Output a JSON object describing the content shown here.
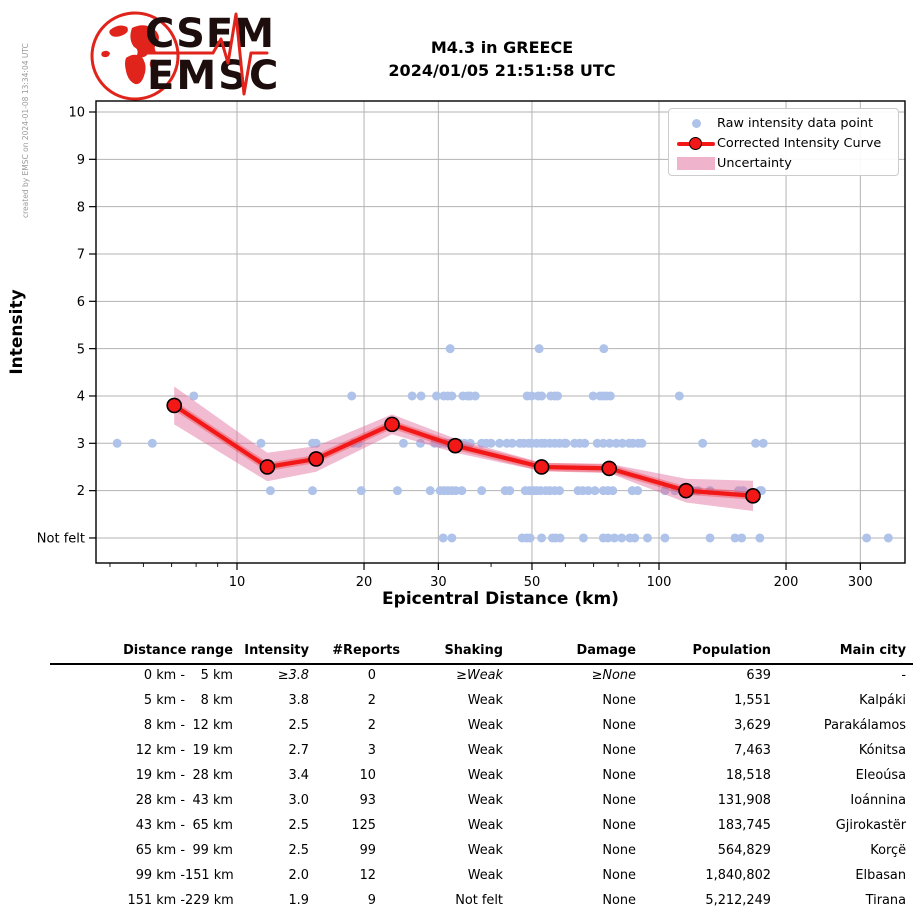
{
  "meta": {
    "created_by": "created by EMSC on 2024-01-08 13:34:04 UTC"
  },
  "logo": {
    "line1": "CSEM",
    "line2": "EMSC"
  },
  "title": {
    "line1": "M4.3 in GREECE",
    "line2": "2024/01/05 21:51:58 UTC"
  },
  "chart_data": {
    "type": "scatter",
    "title": "M4.3 in GREECE 2024/01/05 21:51:58 UTC",
    "xlabel": "Epicentral Distance (km)",
    "ylabel": "Intensity",
    "x_scale": "log",
    "xlim": [
      4.63,
      383
    ],
    "ylim": [
      0.47,
      10.23
    ],
    "x_major_ticks": [
      10,
      20,
      30,
      50,
      100,
      200,
      300
    ],
    "x_minor_ticks": [
      5,
      6,
      7,
      8,
      9,
      40,
      60,
      70,
      80,
      90
    ],
    "y_ticks": [
      {
        "v": 10,
        "label": "10"
      },
      {
        "v": 9,
        "label": "9"
      },
      {
        "v": 8,
        "label": "8"
      },
      {
        "v": 7,
        "label": "7"
      },
      {
        "v": 6,
        "label": "6"
      },
      {
        "v": 5,
        "label": "5"
      },
      {
        "v": 4,
        "label": "4"
      },
      {
        "v": 3,
        "label": "3"
      },
      {
        "v": 2,
        "label": "2"
      },
      {
        "v": 1,
        "label": "Not felt"
      }
    ],
    "grid": true,
    "legend_position": "upper right",
    "legend": [
      {
        "key": "raw",
        "label": "Raw intensity data point"
      },
      {
        "key": "curve",
        "label": "Corrected Intensity Curve"
      },
      {
        "key": "band",
        "label": "Uncertainty"
      }
    ],
    "colors": {
      "raw": "#afc3ea",
      "curve": "#f21818",
      "band": "#e06898",
      "marker_edge": "#000000",
      "grid": "#b3b3b3",
      "axis": "#000000"
    },
    "corrected_curve": [
      [
        7.1,
        3.8,
        0.4
      ],
      [
        11.8,
        2.5,
        0.3
      ],
      [
        15.4,
        2.67,
        0.27
      ],
      [
        23.3,
        3.4,
        0.21
      ],
      [
        32.9,
        2.95,
        0.15
      ],
      [
        52.7,
        2.5,
        0.09
      ],
      [
        76.2,
        2.47,
        0.1
      ],
      [
        115.9,
        2.0,
        0.25
      ],
      [
        167,
        1.89,
        0.32
      ]
    ],
    "raw_points": [
      [
        32,
        5
      ],
      [
        52,
        5
      ],
      [
        74,
        5
      ],
      [
        7.9,
        4
      ],
      [
        18.7,
        4
      ],
      [
        26,
        4
      ],
      [
        27.3,
        4
      ],
      [
        29.7,
        4
      ],
      [
        30.9,
        4
      ],
      [
        31.6,
        4
      ],
      [
        32.3,
        4
      ],
      [
        34.3,
        4
      ],
      [
        35.2,
        4
      ],
      [
        35.7,
        4
      ],
      [
        36.7,
        4
      ],
      [
        48.7,
        4
      ],
      [
        49.9,
        4
      ],
      [
        51.7,
        4
      ],
      [
        52.7,
        4
      ],
      [
        55.4,
        4
      ],
      [
        56.6,
        4
      ],
      [
        57.5,
        4
      ],
      [
        69.8,
        4
      ],
      [
        72.5,
        4
      ],
      [
        73.8,
        4
      ],
      [
        75.1,
        4
      ],
      [
        76.7,
        4
      ],
      [
        111.7,
        4
      ],
      [
        5.2,
        3
      ],
      [
        6.3,
        3
      ],
      [
        11.4,
        3
      ],
      [
        15.1,
        3
      ],
      [
        15.4,
        3
      ],
      [
        18.9,
        3
      ],
      [
        19.4,
        3
      ],
      [
        24.8,
        3
      ],
      [
        27.2,
        3
      ],
      [
        29.4,
        3
      ],
      [
        30.3,
        3
      ],
      [
        31.1,
        3
      ],
      [
        31.9,
        3
      ],
      [
        32.8,
        3
      ],
      [
        33.7,
        3
      ],
      [
        34.6,
        3
      ],
      [
        35.7,
        3
      ],
      [
        38,
        3
      ],
      [
        39,
        3
      ],
      [
        40,
        3
      ],
      [
        41.9,
        3
      ],
      [
        43.6,
        3
      ],
      [
        44.9,
        3
      ],
      [
        46.8,
        3
      ],
      [
        47.8,
        3
      ],
      [
        49.1,
        3
      ],
      [
        49.9,
        3
      ],
      [
        51.3,
        3
      ],
      [
        52.7,
        3
      ],
      [
        53.6,
        3
      ],
      [
        55.1,
        3
      ],
      [
        56.6,
        3
      ],
      [
        58.1,
        3
      ],
      [
        59.7,
        3
      ],
      [
        60.2,
        3
      ],
      [
        63.1,
        3
      ],
      [
        64.9,
        3
      ],
      [
        66.7,
        3
      ],
      [
        71.4,
        3
      ],
      [
        73.8,
        3
      ],
      [
        76.4,
        3
      ],
      [
        79.2,
        3
      ],
      [
        81.9,
        3
      ],
      [
        85,
        3
      ],
      [
        86.7,
        3
      ],
      [
        89.3,
        3
      ],
      [
        91.1,
        3
      ],
      [
        126.9,
        3
      ],
      [
        169.4,
        3
      ],
      [
        176.6,
        3
      ],
      [
        12,
        2
      ],
      [
        15.1,
        2
      ],
      [
        19.7,
        2
      ],
      [
        24,
        2
      ],
      [
        28.7,
        2
      ],
      [
        30.3,
        2
      ],
      [
        30.9,
        2
      ],
      [
        31.6,
        2
      ],
      [
        32.3,
        2
      ],
      [
        33,
        2
      ],
      [
        34.1,
        2
      ],
      [
        38,
        2
      ],
      [
        43.2,
        2
      ],
      [
        44.3,
        2
      ],
      [
        48.2,
        2
      ],
      [
        49.3,
        2
      ],
      [
        50.4,
        2
      ],
      [
        51.3,
        2
      ],
      [
        52.4,
        2
      ],
      [
        53.9,
        2
      ],
      [
        55.1,
        2
      ],
      [
        56.6,
        2
      ],
      [
        58.1,
        2
      ],
      [
        64.3,
        2
      ],
      [
        66,
        2
      ],
      [
        68,
        2
      ],
      [
        70.5,
        2
      ],
      [
        73.8,
        2
      ],
      [
        75.7,
        2
      ],
      [
        77.7,
        2
      ],
      [
        86.4,
        2
      ],
      [
        89,
        2
      ],
      [
        103.3,
        2
      ],
      [
        109.1,
        2
      ],
      [
        120.4,
        2
      ],
      [
        123.7,
        2
      ],
      [
        132.1,
        2
      ],
      [
        154.4,
        2
      ],
      [
        158.3,
        2
      ],
      [
        173.4,
        2
      ],
      [
        174.9,
        2
      ],
      [
        30.8,
        1
      ],
      [
        32.3,
        1
      ],
      [
        47.4,
        1
      ],
      [
        48.6,
        1
      ],
      [
        49.5,
        1
      ],
      [
        52.7,
        1
      ],
      [
        55.9,
        1
      ],
      [
        56.9,
        1
      ],
      [
        58.3,
        1
      ],
      [
        66.2,
        1
      ],
      [
        73.8,
        1
      ],
      [
        75.7,
        1
      ],
      [
        78.4,
        1
      ],
      [
        81.6,
        1
      ],
      [
        85.3,
        1
      ],
      [
        87.6,
        1
      ],
      [
        93.9,
        1
      ],
      [
        103.3,
        1
      ],
      [
        132.1,
        1
      ],
      [
        151.4,
        1
      ],
      [
        157,
        1
      ],
      [
        173.4,
        1
      ],
      [
        310.5,
        1
      ],
      [
        349.5,
        1
      ]
    ]
  },
  "table": {
    "headers": [
      "Distance range",
      "Intensity",
      "#Reports",
      "Shaking",
      "Damage",
      "Population",
      "Main city"
    ],
    "rows": [
      {
        "from": "0 km -",
        "to": "5 km",
        "intensity": "≥3.8",
        "reports": "0",
        "shaking": "≥Weak",
        "damage": "≥None",
        "population": "639",
        "city": "-",
        "approx": true
      },
      {
        "from": "5 km -",
        "to": "8 km",
        "intensity": "3.8",
        "reports": "2",
        "shaking": "Weak",
        "damage": "None",
        "population": "1,551",
        "city": "Kalpáki",
        "approx": false
      },
      {
        "from": "8 km -",
        "to": "12 km",
        "intensity": "2.5",
        "reports": "2",
        "shaking": "Weak",
        "damage": "None",
        "population": "3,629",
        "city": "Parakálamos",
        "approx": false
      },
      {
        "from": "12 km -",
        "to": "19 km",
        "intensity": "2.7",
        "reports": "3",
        "shaking": "Weak",
        "damage": "None",
        "population": "7,463",
        "city": "Kónitsa",
        "approx": false
      },
      {
        "from": "19 km -",
        "to": "28 km",
        "intensity": "3.4",
        "reports": "10",
        "shaking": "Weak",
        "damage": "None",
        "population": "18,518",
        "city": "Eleoúsa",
        "approx": false
      },
      {
        "from": "28 km -",
        "to": "43 km",
        "intensity": "3.0",
        "reports": "93",
        "shaking": "Weak",
        "damage": "None",
        "population": "131,908",
        "city": "Ioánnina",
        "approx": false
      },
      {
        "from": "43 km -",
        "to": "65 km",
        "intensity": "2.5",
        "reports": "125",
        "shaking": "Weak",
        "damage": "None",
        "population": "183,745",
        "city": "Gjirokastër",
        "approx": false
      },
      {
        "from": "65 km -",
        "to": "99 km",
        "intensity": "2.5",
        "reports": "99",
        "shaking": "Weak",
        "damage": "None",
        "population": "564,829",
        "city": "Korçë",
        "approx": false
      },
      {
        "from": "99 km -",
        "to": "151 km",
        "intensity": "2.0",
        "reports": "12",
        "shaking": "Weak",
        "damage": "None",
        "population": "1,840,802",
        "city": "Elbasan",
        "approx": false
      },
      {
        "from": "151 km -",
        "to": "229 km",
        "intensity": "1.9",
        "reports": "9",
        "shaking": "Not felt",
        "damage": "None",
        "population": "5,212,249",
        "city": "Tirana",
        "approx": false
      }
    ]
  }
}
